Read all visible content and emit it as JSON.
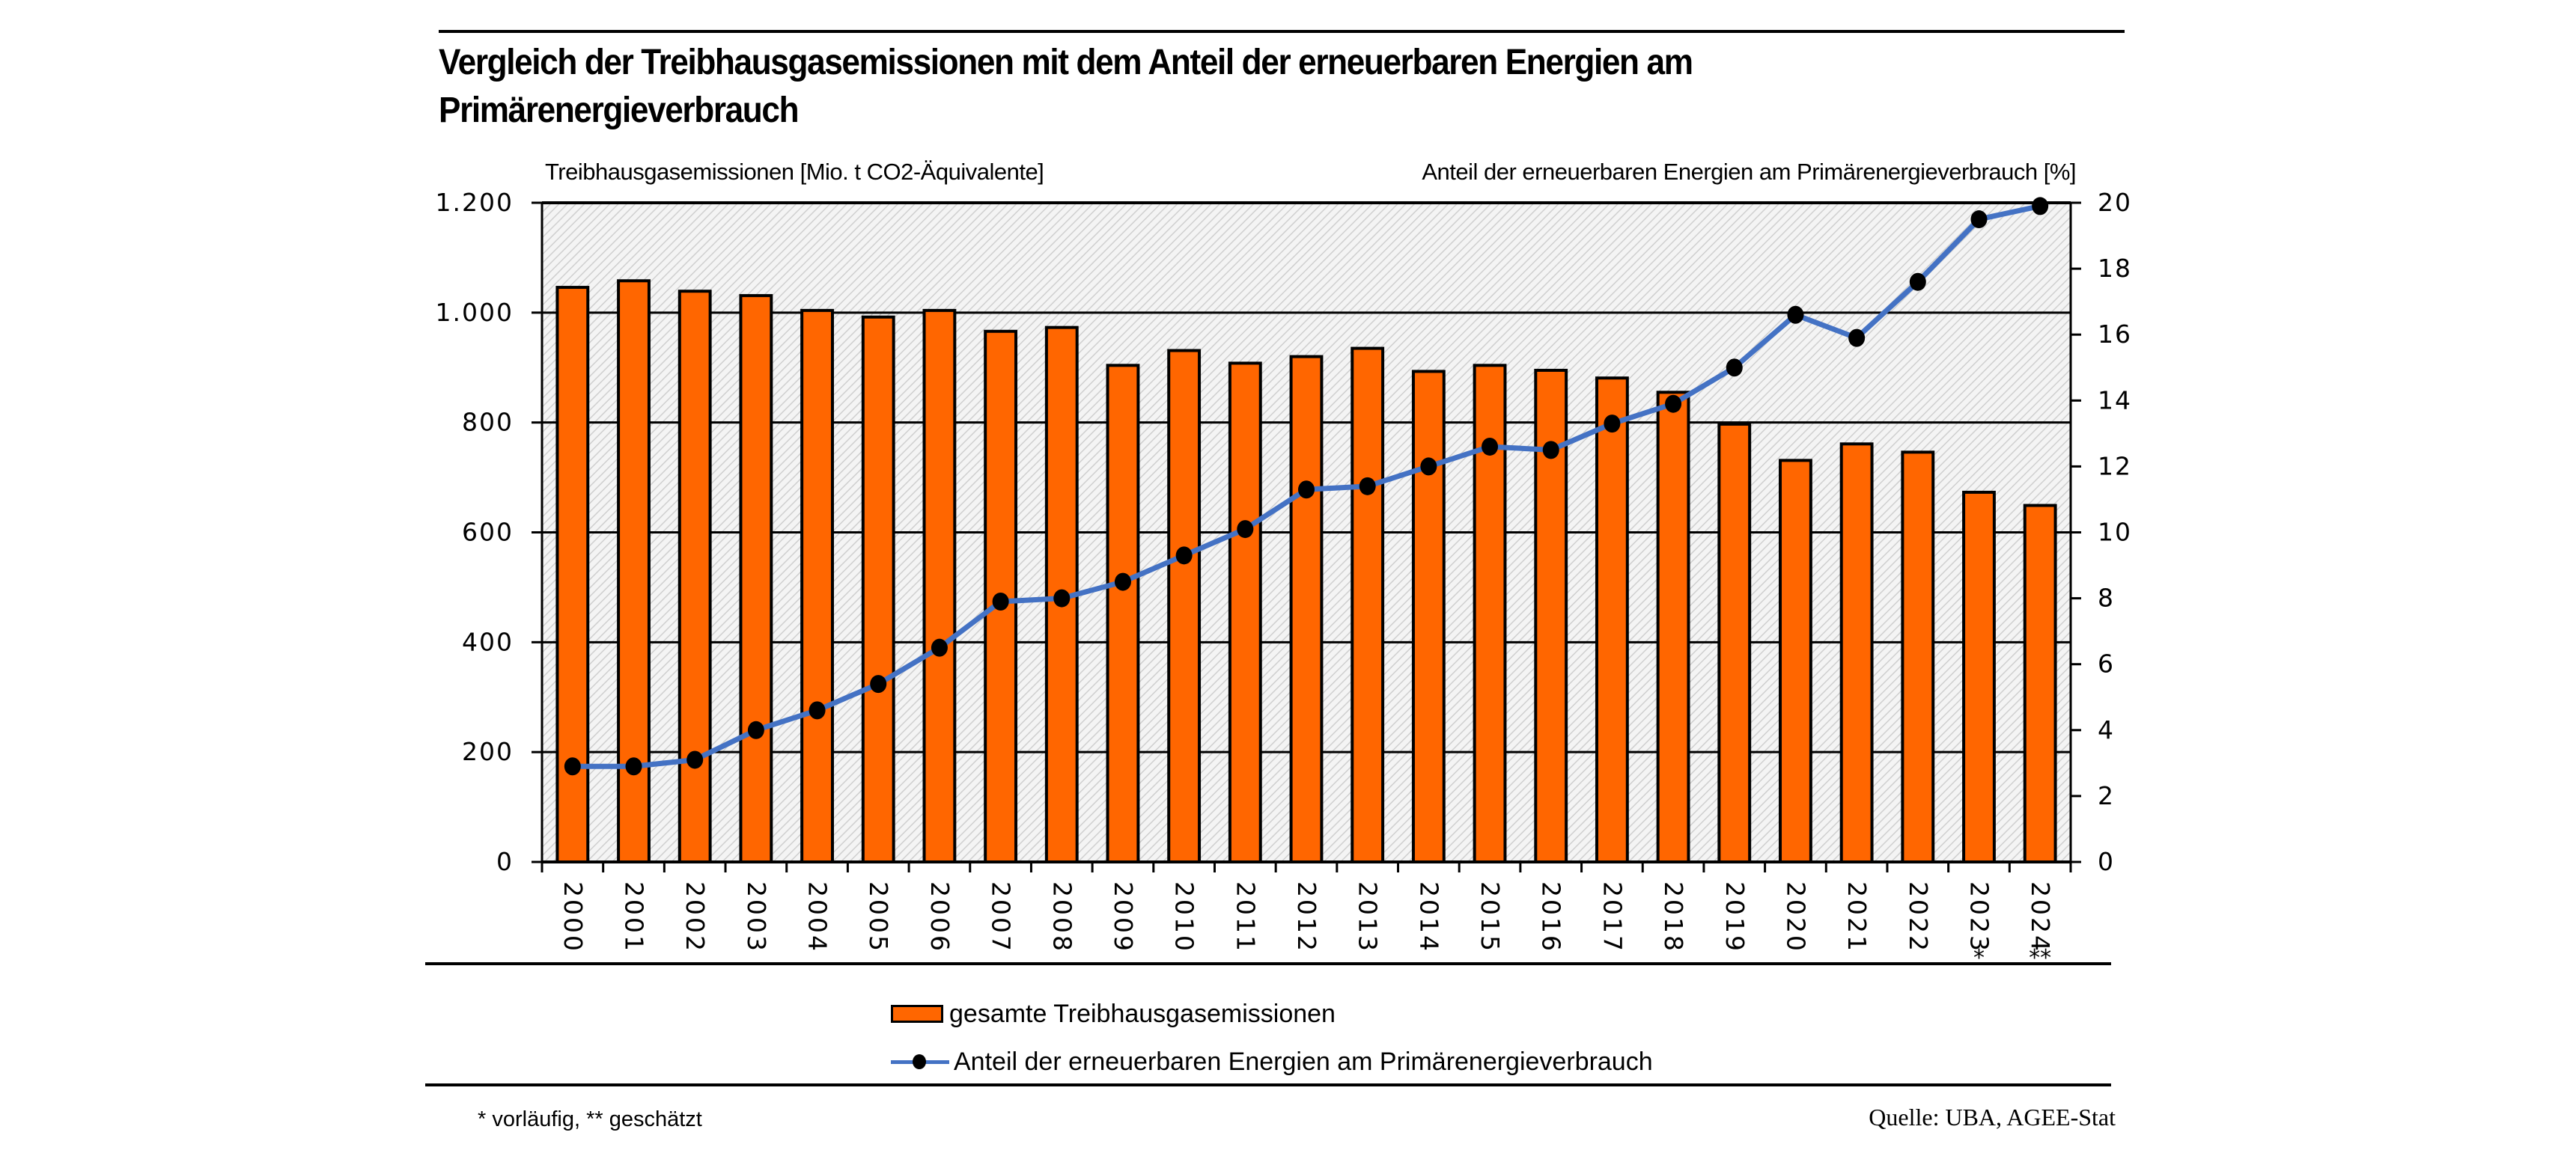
{
  "title": "Vergleich der Treibhausgasemissionen mit dem Anteil der erneuerbaren Energien am Primärenergieverbrauch",
  "footnote": "* vorläufig, ** geschätzt",
  "source": "Quelle: UBA, AGEE-Stat",
  "colors": {
    "bar_fill": "#ff6600",
    "bar_stroke": "#000000",
    "line": "#4472c4",
    "marker": "#000000",
    "plot_background_hatch": "#d9d9d9"
  },
  "chart_data": {
    "type": "bar",
    "title": "Vergleich der Treibhausgasemissionen mit dem Anteil der erneuerbaren Energien am Primärenergieverbrauch",
    "categories": [
      "2000",
      "2001",
      "2002",
      "2003",
      "2004",
      "2005",
      "2006",
      "2007",
      "2008",
      "2009",
      "2010",
      "2011",
      "2012",
      "2013",
      "2014",
      "2015",
      "2016",
      "2017",
      "2018",
      "2019",
      "2020",
      "2021",
      "2022",
      "2023",
      "2024"
    ],
    "category_suffixes": [
      "",
      "",
      "",
      "",
      "",
      "",
      "",
      "",
      "",
      "",
      "",
      "",
      "",
      "",
      "",
      "",
      "",
      "",
      "",
      "",
      "",
      "",
      "",
      "*",
      "**"
    ],
    "ylabel": "Treibhausgasemissionen [Mio. t CO2-Äquivalente]",
    "ylabel_right": "Anteil der erneuerbaren Energien am Primärenergieverbrauch  [%]",
    "xlabel": "",
    "ylim": [
      0,
      1200
    ],
    "ylim_right": [
      0,
      20
    ],
    "yticks": [
      0,
      200,
      400,
      600,
      800,
      1000,
      1200
    ],
    "ytick_labels": [
      "0",
      "200",
      "400",
      "600",
      "800",
      "1.000",
      "1.200"
    ],
    "yticks_right": [
      0,
      2,
      4,
      6,
      8,
      10,
      12,
      14,
      16,
      18,
      20
    ],
    "ytick_labels_right": [
      "0",
      "2",
      "4",
      "6",
      "8",
      "10",
      "12",
      "14",
      "16",
      "18",
      "20"
    ],
    "grid": true,
    "legend_position": "bottom",
    "series": [
      {
        "name": "gesamte Treibhausgasemissionen",
        "type": "bar",
        "axis": "left",
        "values": [
          1046,
          1058,
          1039,
          1031,
          1004,
          992,
          1004,
          966,
          973,
          904,
          931,
          908,
          920,
          935,
          893,
          904,
          895,
          881,
          855,
          797,
          731,
          761,
          746,
          673,
          649
        ]
      },
      {
        "name": "Anteil der erneuerbaren Energien am Primärenergieverbrauch",
        "type": "line",
        "axis": "right",
        "marker": "circle",
        "values": [
          2.9,
          2.9,
          3.1,
          4.0,
          4.6,
          5.4,
          6.5,
          7.9,
          8.0,
          8.5,
          9.3,
          10.1,
          11.3,
          11.4,
          12.0,
          12.6,
          12.5,
          13.3,
          13.9,
          15.0,
          16.6,
          15.9,
          17.6,
          19.5,
          19.9
        ]
      }
    ]
  }
}
